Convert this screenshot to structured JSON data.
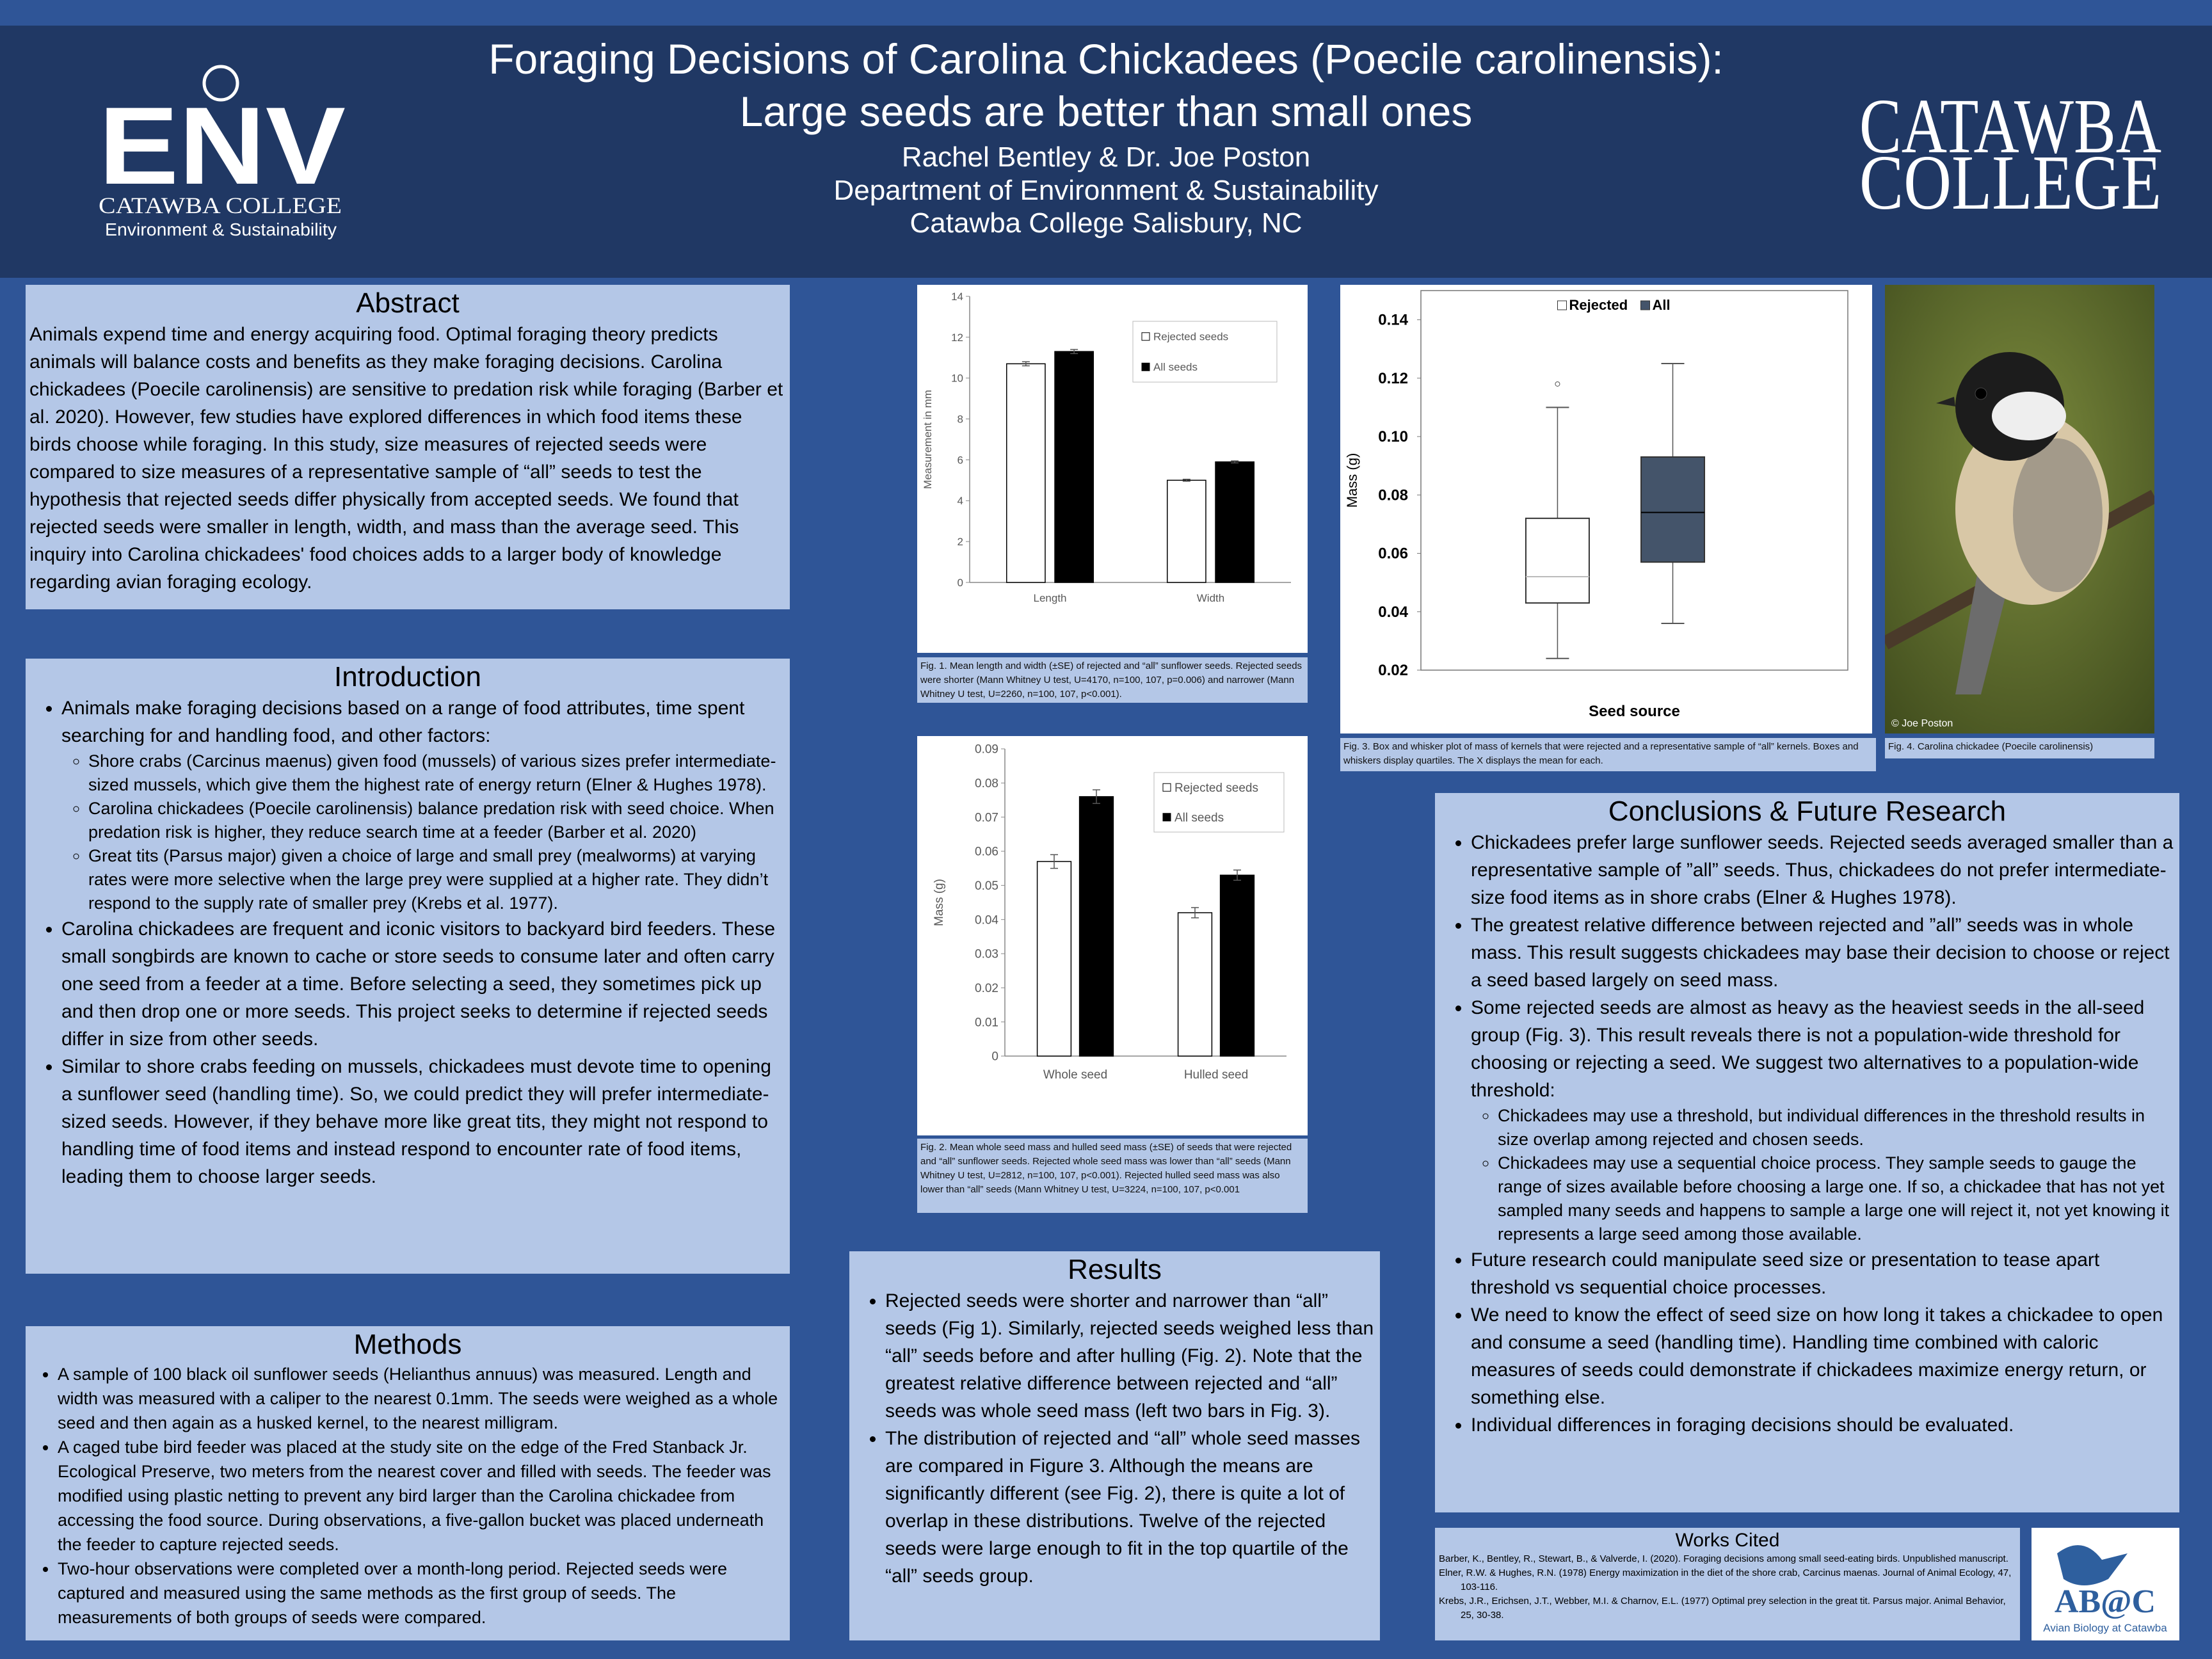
{
  "header": {
    "title_line1": "Foraging Decisions of Carolina Chickadees (Poecile carolinensis):",
    "title_line2": "Large seeds are better than small ones",
    "authors": "Rachel Bentley & Dr. Joe Poston",
    "department": "Department of Environment & Sustainability",
    "institution": "Catawba College Salisbury, NC"
  },
  "logos": {
    "env": "ENV",
    "env_college": "CATAWBA COLLEGE",
    "env_dept": "Environment & Sustainability",
    "catawba_line1": "CATAWBA",
    "catawba_line2": "COLLEGE",
    "abc": "AB@C",
    "abc_sub": "Avian Biology at Catawba"
  },
  "sections": {
    "abstract": {
      "heading": "Abstract",
      "text": "Animals expend time and energy acquiring food. Optimal foraging theory predicts animals will balance costs and benefits as they make foraging decisions. Carolina chickadees (Poecile carolinensis) are sensitive to predation risk while foraging (Barber et al. 2020). However, few studies have explored differences in which food items these birds choose while foraging. In this study, size measures of rejected seeds were compared to size measures of a representative sample of “all” seeds to test the hypothesis that rejected seeds differ physically from accepted seeds. We found that rejected seeds were smaller in length, width, and mass than the average seed. This inquiry into Carolina chickadees' food choices adds to a larger body of knowledge regarding avian foraging ecology."
    },
    "introduction": {
      "heading": "Introduction",
      "items": [
        {
          "text": "Animals make foraging decisions based on a range of food attributes, time spent searching for and handling food, and other factors:",
          "sub": [
            "Shore crabs (Carcinus maenus) given food (mussels) of various sizes prefer intermediate-sized mussels, which give them the highest rate of energy return (Elner & Hughes 1978).",
            "Carolina chickadees (Poecile carolinensis) balance predation risk with seed choice. When predation risk is higher, they reduce search time at a feeder (Barber et al. 2020)",
            "Great tits (Parsus major) given a choice of large and small prey (mealworms) at varying rates were more selective when the large prey were supplied at a higher rate. They didn’t respond to the supply rate of smaller prey (Krebs et al. 1977)."
          ]
        },
        "Carolina chickadees are frequent and iconic visitors to backyard bird feeders. These small songbirds are known to cache or store seeds to consume later and often carry one seed from a feeder at a time. Before selecting a seed, they sometimes pick up and then drop one or more seeds. This project seeks to determine if rejected seeds differ in size from other seeds.",
        "Similar to shore crabs feeding on mussels, chickadees must devote time to opening a sunflower seed (handling time). So, we could predict they will prefer intermediate-sized seeds. However, if they behave more like great tits, they might not respond to handling time of food items and instead respond to encounter rate of food items, leading them to choose larger seeds."
      ]
    },
    "methods": {
      "heading": "Methods",
      "items": [
        "A sample of 100 black oil sunflower seeds (Helianthus annuus) was measured. Length and width was measured with a caliper to the nearest 0.1mm. The seeds were weighed as a whole seed and then again as a husked kernel, to the nearest milligram.",
        "A caged tube bird feeder was placed at the study site on the edge of the Fred Stanback Jr. Ecological Preserve, two meters from the nearest cover and filled with seeds. The feeder was modified using plastic netting to prevent any bird larger than the Carolina chickadee from accessing the food source. During observations, a five-gallon bucket was placed underneath the feeder to capture rejected seeds.",
        "Two-hour observations were completed over a month-long period. Rejected seeds were captured and measured using the same methods as the first group of seeds. The measurements of both groups of seeds were compared."
      ]
    },
    "results": {
      "heading": "Results",
      "items": [
        "Rejected seeds were shorter and narrower than “all” seeds (Fig 1). Similarly, rejected seeds weighed less than “all” seeds before and after hulling (Fig. 2). Note that the greatest relative difference between rejected and “all” seeds was whole seed mass (left two bars in Fig. 3).",
        "The distribution of rejected and “all” whole seed masses are compared in Figure 3. Although the means are significantly different (see Fig. 2), there is quite a lot of overlap in these distributions. Twelve of the rejected seeds were large enough to fit in the top quartile of the “all” seeds group."
      ]
    },
    "conclusions": {
      "heading": "Conclusions & Future Research",
      "items": [
        "Chickadees prefer large sunflower seeds. Rejected seeds averaged smaller than a representative sample of ”all” seeds. Thus, chickadees do not prefer intermediate-size food items as in shore crabs (Elner & Hughes 1978).",
        "The greatest relative difference between rejected and ”all” seeds was in whole mass. This result suggests chickadees may base their decision to choose or reject a seed based largely on seed mass.",
        {
          "text": "Some rejected seeds are almost as heavy as the heaviest seeds in the all-seed group (Fig. 3). This result reveals there is not a population-wide threshold for choosing or rejecting a seed. We suggest two alternatives to a population-wide threshold:",
          "sub": [
            "Chickadees may use a threshold, but individual differences in the threshold results in size overlap among rejected and chosen seeds.",
            "Chickadees may use a sequential choice process. They sample seeds to gauge the range of sizes available before choosing a large one. If so, a chickadee that has not yet sampled many seeds and happens to sample a large one will reject it, not yet knowing it represents a large seed among those available."
          ]
        },
        "Future research could manipulate seed size or presentation to tease apart threshold vs sequential choice processes.",
        "We need to know the effect of seed size on how long it takes a chickadee to open and consume a seed (handling time). Handling time combined with caloric measures of seeds could demonstrate if chickadees maximize energy return, or something else.",
        "Individual differences in foraging decisions should be evaluated."
      ]
    },
    "works_cited": {
      "heading": "Works Cited",
      "items": [
        "Barber, K., Bentley, R., Stewart, B., & Valverde, I. (2020). Foraging decisions among small seed-eating birds. Unpublished manuscript.",
        "Elner, R.W. & Hughes, R.N. (1978) Energy maximization in the diet of the shore crab, Carcinus maenas. Journal of Animal Ecology, 47, 103-116.",
        "Krebs, J.R., Erichsen, J.T., Webber, M.I. & Charnov, E.L. (1977) Optimal prey selection in the great tit. Parsus major. Animal Behavior, 25, 30-38."
      ]
    }
  },
  "figures": {
    "fig1_caption": "Fig. 1. Mean length and width (±SE) of rejected and “all” sunflower seeds. Rejected seeds were shorter (Mann Whitney U test, U=4170, n=100, 107, p=0.006) and narrower (Mann Whitney U test, U=2260, n=100, 107, p<0.001).",
    "fig2_caption": "Fig. 2. Mean whole seed mass and hulled seed mass (±SE) of seeds that were rejected and “all” sunflower seeds. Rejected whole seed mass was lower than “all” seeds (Mann Whitney U test, U=2812, n=100, 107, p<0.001). Rejected hulled seed mass was also lower than “all” seeds (Mann Whitney U test, U=3224, n=100, 107, p<0.001",
    "fig3_caption": "Fig. 3. Box and whisker plot of mass of kernels that were rejected and a representative sample of “all” kernels. Boxes and whiskers display quartiles. The X displays the mean for each.",
    "fig4_caption": "Fig. 4. Carolina chickadee (Poecile carolinensis)",
    "photo_credit": "© Joe Poston"
  },
  "chart_data": [
    {
      "type": "bar",
      "ylabel": "Measurement in mm",
      "categories": [
        "Length",
        "Width"
      ],
      "series": [
        {
          "name": "Rejected seeds",
          "color": "#ffffff",
          "values": [
            10.7,
            5.0
          ],
          "errors": [
            0.1,
            0.05
          ]
        },
        {
          "name": "All seeds",
          "color": "#000000",
          "values": [
            11.3,
            5.9
          ],
          "errors": [
            0.1,
            0.05
          ]
        }
      ],
      "ylim": [
        0,
        14
      ],
      "yticks": [
        0,
        2,
        4,
        6,
        8,
        10,
        12,
        14
      ],
      "legend": "upper right"
    },
    {
      "type": "bar",
      "ylabel": "Mass (g)",
      "categories": [
        "Whole seed",
        "Hulled seed"
      ],
      "series": [
        {
          "name": "Rejected seeds",
          "color": "#ffffff",
          "values": [
            0.057,
            0.042
          ],
          "errors": [
            0.002,
            0.0015
          ]
        },
        {
          "name": "All seeds",
          "color": "#000000",
          "values": [
            0.076,
            0.053
          ],
          "errors": [
            0.002,
            0.0015
          ]
        }
      ],
      "ylim": [
        0,
        0.09
      ],
      "yticks": [
        0,
        0.01,
        0.02,
        0.03,
        0.04,
        0.05,
        0.06,
        0.07,
        0.08,
        0.09
      ],
      "legend": "upper right"
    },
    {
      "type": "box",
      "xlabel": "Seed source",
      "ylabel": "Mass (g)",
      "boxes": [
        {
          "name": "Rejected",
          "color": "#ffffff",
          "whislo": 0.024,
          "q1": 0.043,
          "med": 0.052,
          "q3": 0.072,
          "whishi": 0.11,
          "fliers": [
            0.118
          ]
        },
        {
          "name": "All",
          "color": "#44546a",
          "whislo": 0.036,
          "q1": 0.057,
          "med": 0.074,
          "q3": 0.093,
          "whishi": 0.125,
          "fliers": []
        }
      ],
      "ylim": [
        0.02,
        0.15
      ],
      "yticks": [
        0.02,
        0.04,
        0.06,
        0.08,
        {
          "value": 0.1,
          "label": "0.10"
        },
        0.12,
        0.14
      ],
      "legend": "upper center"
    }
  ]
}
